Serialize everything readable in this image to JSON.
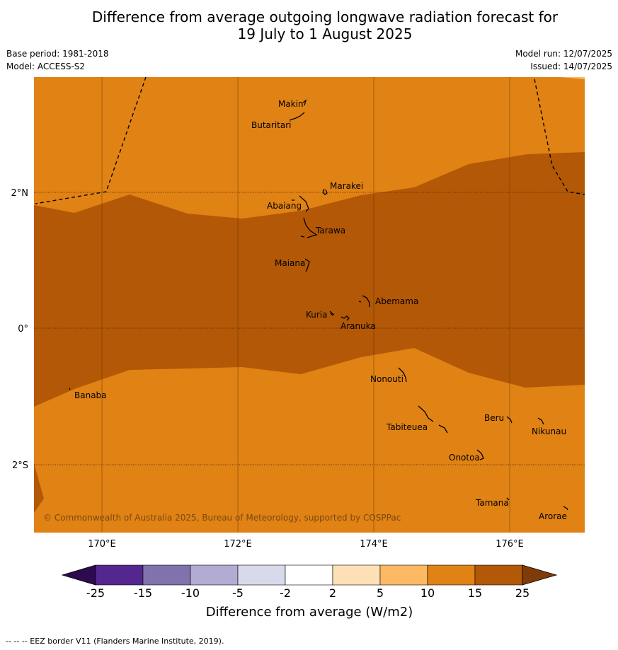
{
  "title_line1": "Difference from average outgoing longwave radiation forecast for",
  "title_line2": "19 July to 1 August 2025",
  "base_period": "Base period: 1981-2018",
  "model": "Model: ACCESS-S2",
  "model_run": "Model run: 12/07/2025",
  "issued": "Issued: 14/07/2025",
  "copyright": "© Commonwealth of Australia 2025, Bureau of Meteorology, supported by COSPPac",
  "lat_labels": [
    "2°N",
    "0°",
    "2°S"
  ],
  "lon_labels": [
    "170°E",
    "172°E",
    "174°E",
    "176°E"
  ],
  "colorbar": {
    "ticks": [
      "-25",
      "-15",
      "-10",
      "-5",
      "-2",
      "2",
      "5",
      "10",
      "15",
      "25"
    ],
    "colors": [
      "#2e0a4e",
      "#54278f",
      "#8073ac",
      "#b2abd2",
      "#d8daeb",
      "#ffffff",
      "#fee0b6",
      "#fdb863",
      "#e08214",
      "#b35806",
      "#7f3b08"
    ],
    "label": "Difference from average (W/m2)"
  },
  "places": [
    {
      "name": "Makin"
    },
    {
      "name": "Butaritari"
    },
    {
      "name": "Marakei"
    },
    {
      "name": "Abaiang"
    },
    {
      "name": "Tarawa"
    },
    {
      "name": "Maiana"
    },
    {
      "name": "Abemama"
    },
    {
      "name": "Kuria"
    },
    {
      "name": "Aranuka"
    },
    {
      "name": "Nonouti"
    },
    {
      "name": "Banaba"
    },
    {
      "name": "Beru"
    },
    {
      "name": "Tabiteuea"
    },
    {
      "name": "Nikunau"
    },
    {
      "name": "Onotoa"
    },
    {
      "name": "Tamana"
    },
    {
      "name": "Arorae"
    }
  ],
  "footnote": "--  --  -- EEZ border V11 (Flanders Marine Institute, 2019)."
}
